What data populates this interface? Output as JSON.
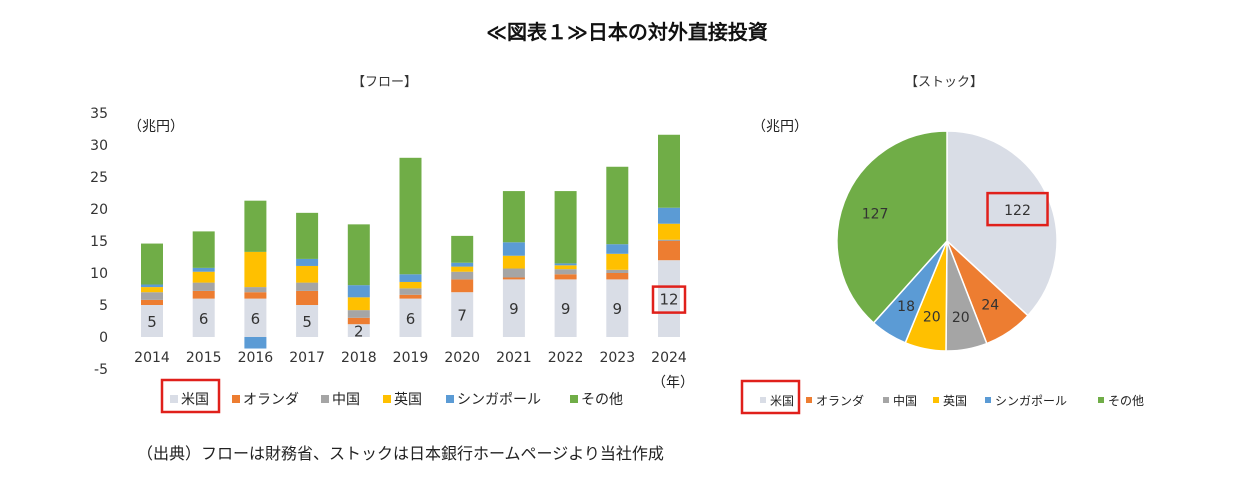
{
  "title": "≪図表１≫日本の対外直接投資",
  "source_note": "（出典）フローは財務省、ストックは日本銀行ホームページより当社作成",
  "colors": {
    "米国": "#d9dde6",
    "オランダ": "#ed7d31",
    "中国": "#a5a5a5",
    "英国": "#ffc000",
    "シンガポール": "#5b9bd5",
    "その他": "#70ad47",
    "highlight": "#e0201b"
  },
  "chart_data": [
    {
      "type": "bar",
      "subtitle": "【フロー】",
      "stacked": true,
      "unit_label": "（兆円）",
      "x_unit_label": "（年）",
      "categories": [
        "2014",
        "2015",
        "2016",
        "2017",
        "2018",
        "2019",
        "2020",
        "2021",
        "2022",
        "2023",
        "2024"
      ],
      "ylim": [
        -5,
        35
      ],
      "yticks": [
        35,
        30,
        25,
        20,
        15,
        10,
        5,
        0,
        -5
      ],
      "grid": false,
      "legend": "bottom",
      "series": [
        {
          "name": "米国",
          "values": [
            5,
            6,
            6,
            5,
            2,
            6,
            7,
            9,
            9,
            9,
            12
          ]
        },
        {
          "name": "オランダ",
          "values": [
            0.8,
            1.2,
            1.0,
            2.2,
            1.0,
            0.6,
            2.0,
            0.3,
            0.8,
            1.0,
            3.0
          ]
        },
        {
          "name": "中国",
          "values": [
            1.2,
            1.3,
            0.8,
            1.3,
            1.2,
            1.0,
            1.2,
            1.4,
            0.8,
            0.5,
            0.2
          ]
        },
        {
          "name": "英国",
          "values": [
            0.8,
            1.7,
            5.5,
            2.6,
            2.0,
            1.0,
            0.8,
            2.0,
            0.6,
            2.5,
            2.5
          ]
        },
        {
          "name": "シンガポール",
          "values": [
            0.4,
            0.6,
            -1.8,
            1.1,
            1.9,
            1.2,
            0.6,
            2.1,
            0.3,
            1.5,
            2.5
          ]
        },
        {
          "name": "その他",
          "values": [
            6.4,
            5.7,
            8.0,
            7.2,
            9.5,
            18.2,
            4.2,
            8.0,
            11.3,
            12.1,
            11.4
          ]
        }
      ],
      "data_labels": {
        "series": "米国",
        "values": [
          5,
          6,
          6,
          5,
          2,
          6,
          7,
          9,
          9,
          9,
          12
        ]
      },
      "highlighted_label": "12"
    },
    {
      "type": "pie",
      "subtitle": "【ストック】",
      "unit_label": "（兆円）",
      "legend": "bottom",
      "slices": [
        {
          "name": "米国",
          "value": 122,
          "label": "122"
        },
        {
          "name": "オランダ",
          "value": 24,
          "label": "24"
        },
        {
          "name": "中国",
          "value": 20,
          "label": "20"
        },
        {
          "name": "英国",
          "value": 20,
          "label": "20"
        },
        {
          "name": "シンガポール",
          "value": 18,
          "label": "18"
        },
        {
          "name": "その他",
          "value": 127,
          "label": "127"
        }
      ],
      "highlighted_label": "122"
    }
  ]
}
